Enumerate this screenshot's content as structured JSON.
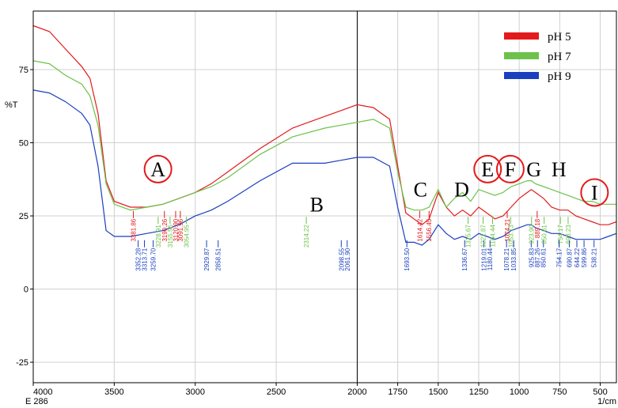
{
  "chart_data": {
    "type": "line",
    "ylabel": "%T",
    "xunit_label": "1/cm",
    "corner_label": "E 286",
    "xlim": [
      4000,
      400
    ],
    "ylim": [
      -32,
      95
    ],
    "xticks": [
      4000,
      3500,
      3000,
      2500,
      2000,
      1750,
      1500,
      1250,
      1000,
      750,
      500
    ],
    "yticks": [
      75,
      50,
      25,
      0,
      -25
    ],
    "grid": true,
    "legend_position": "top-right",
    "series": [
      {
        "name": "pH 5",
        "color": "#e31a1c",
        "x": [
          4000,
          3900,
          3800,
          3700,
          3650,
          3600,
          3550,
          3500,
          3400,
          3300,
          3200,
          3100,
          3000,
          2900,
          2800,
          2600,
          2400,
          2200,
          2100,
          2000,
          1900,
          1800,
          1750,
          1700,
          1650,
          1600,
          1556,
          1500,
          1450,
          1400,
          1350,
          1300,
          1250,
          1200,
          1150,
          1100,
          1050,
          1000,
          950,
          925,
          900,
          850,
          800,
          750,
          700,
          650,
          600,
          550,
          500,
          450,
          400
        ],
        "y": [
          90,
          88,
          82,
          76,
          72,
          60,
          37,
          30,
          28,
          28,
          29,
          31,
          33,
          36,
          40,
          48,
          55,
          59,
          61,
          63,
          62,
          58,
          42,
          26,
          24,
          22,
          24,
          33,
          28,
          25,
          27,
          25,
          28,
          26,
          24,
          25,
          28,
          31,
          33,
          34,
          33,
          31,
          28,
          27,
          27,
          25,
          24,
          23,
          22,
          22,
          23
        ]
      },
      {
        "name": "pH 7",
        "color": "#6cc24a",
        "x": [
          4000,
          3900,
          3800,
          3700,
          3650,
          3600,
          3550,
          3500,
          3400,
          3300,
          3200,
          3100,
          3000,
          2900,
          2800,
          2600,
          2400,
          2200,
          2100,
          2000,
          1900,
          1800,
          1750,
          1700,
          1650,
          1600,
          1556,
          1500,
          1450,
          1400,
          1350,
          1300,
          1250,
          1200,
          1150,
          1100,
          1050,
          1000,
          950,
          925,
          900,
          850,
          800,
          750,
          700,
          650,
          600,
          550,
          500,
          450,
          400
        ],
        "y": [
          78,
          77,
          73,
          70,
          66,
          56,
          36,
          29,
          27,
          28,
          29,
          31,
          33,
          35,
          38,
          46,
          52,
          55,
          56,
          57,
          58,
          55,
          40,
          28,
          27,
          27,
          28,
          34,
          28,
          31,
          33,
          30,
          34,
          33,
          32,
          33,
          35,
          36,
          37,
          37,
          36,
          35,
          34,
          33,
          32,
          31,
          30,
          30,
          29,
          29,
          29
        ]
      },
      {
        "name": "pH 9",
        "color": "#1a3fbf",
        "x": [
          4000,
          3900,
          3800,
          3700,
          3650,
          3600,
          3550,
          3500,
          3400,
          3300,
          3200,
          3100,
          3000,
          2900,
          2800,
          2600,
          2400,
          2200,
          2100,
          2000,
          1900,
          1800,
          1750,
          1700,
          1650,
          1600,
          1556,
          1500,
          1450,
          1400,
          1350,
          1300,
          1250,
          1200,
          1150,
          1100,
          1050,
          1000,
          950,
          925,
          900,
          850,
          800,
          750,
          700,
          650,
          600,
          550,
          500,
          450,
          400
        ],
        "y": [
          68,
          67,
          64,
          60,
          56,
          42,
          20,
          18,
          18,
          19,
          20,
          22,
          25,
          27,
          30,
          37,
          43,
          43,
          44,
          45,
          45,
          42,
          28,
          16,
          16,
          15,
          17,
          22,
          19,
          17,
          18,
          17,
          19,
          18,
          17,
          18,
          20,
          21,
          22,
          22,
          21,
          20,
          19,
          19,
          18,
          17,
          17,
          17,
          17,
          18,
          19
        ]
      }
    ],
    "peak_labels": [
      {
        "text": "3381.86",
        "x": 3381.86,
        "color": "#e31a1c"
      },
      {
        "text": "3352.28",
        "x": 3352.28,
        "color": "#1a3fbf"
      },
      {
        "text": "3313.71",
        "x": 3313.71,
        "color": "#1a3fbf"
      },
      {
        "text": "3259.70",
        "x": 3259.7,
        "color": "#1a3fbf"
      },
      {
        "text": "3228.91",
        "x": 3228.91,
        "color": "#6cc24a"
      },
      {
        "text": "3190.26",
        "x": 3190.26,
        "color": "#e31a1c"
      },
      {
        "text": "3155.56",
        "x": 3155.56,
        "color": "#6cc24a"
      },
      {
        "text": "3120.90",
        "x": 3120.9,
        "color": "#e31a1c"
      },
      {
        "text": "3091.96",
        "x": 3091.96,
        "color": "#e31a1c"
      },
      {
        "text": "3054.95",
        "x": 3054.95,
        "color": "#6cc24a"
      },
      {
        "text": "2929.87",
        "x": 2929.87,
        "color": "#1a3fbf"
      },
      {
        "text": "2858.51",
        "x": 2858.51,
        "color": "#1a3fbf"
      },
      {
        "text": "2314.22",
        "x": 2314.22,
        "color": "#6cc24a"
      },
      {
        "text": "2098.55",
        "x": 2098.55,
        "color": "#1a3fbf"
      },
      {
        "text": "2061.90",
        "x": 2061.9,
        "color": "#1a3fbf"
      },
      {
        "text": "1693.50",
        "x": 1693.5,
        "color": "#1a3fbf"
      },
      {
        "text": "1614.42",
        "x": 1614.42,
        "color": "#e31a1c"
      },
      {
        "text": "1556.45",
        "x": 1556.45,
        "color": "#e31a1c"
      },
      {
        "text": "1336.67",
        "x": 1336.67,
        "color": "#1a3fbf"
      },
      {
        "text": "1315.67",
        "x": 1315.67,
        "color": "#6cc24a"
      },
      {
        "text": "1219.01",
        "x": 1219.01,
        "color": "#1a3fbf"
      },
      {
        "text": "1222.87",
        "x": 1222.87,
        "color": "#6cc24a"
      },
      {
        "text": "1180.44",
        "x": 1180.44,
        "color": "#1a3fbf"
      },
      {
        "text": "1164.44",
        "x": 1164.44,
        "color": "#6cc24a"
      },
      {
        "text": "1078.21",
        "x": 1078.21,
        "color": "#1a3fbf"
      },
      {
        "text": "1074.21",
        "x": 1074.21,
        "color": "#e31a1c"
      },
      {
        "text": "1033.85",
        "x": 1033.85,
        "color": "#1a3fbf"
      },
      {
        "text": "1053.13",
        "x": 1053.13,
        "color": "#6cc24a"
      },
      {
        "text": "925.83",
        "x": 925.83,
        "color": "#1a3fbf"
      },
      {
        "text": "923.90",
        "x": 923.9,
        "color": "#6cc24a"
      },
      {
        "text": "887.26",
        "x": 887.26,
        "color": "#1a3fbf"
      },
      {
        "text": "889.18",
        "x": 889.18,
        "color": "#e31a1c"
      },
      {
        "text": "850.61",
        "x": 850.61,
        "color": "#1a3fbf"
      },
      {
        "text": "850.61",
        "x": 846.0,
        "color": "#6cc24a"
      },
      {
        "text": "754.17",
        "x": 754.17,
        "color": "#1a3fbf"
      },
      {
        "text": "754.17",
        "x": 746.0,
        "color": "#6cc24a"
      },
      {
        "text": "690.87",
        "x": 690.87,
        "color": "#1a3fbf"
      },
      {
        "text": "698.23",
        "x": 698.23,
        "color": "#6cc24a"
      },
      {
        "text": "644.22",
        "x": 644.22,
        "color": "#1a3fbf"
      },
      {
        "text": "599.86",
        "x": 599.86,
        "color": "#1a3fbf"
      },
      {
        "text": "538.21",
        "x": 538.21,
        "color": "#1a3fbf"
      }
    ],
    "region_labels": [
      {
        "text": "A",
        "x": 3230,
        "y": 41,
        "circled": true
      },
      {
        "text": "B",
        "x": 2250,
        "y": 29,
        "circled": false
      },
      {
        "text": "C",
        "x": 1610,
        "y": 34,
        "circled": false
      },
      {
        "text": "D",
        "x": 1355,
        "y": 34,
        "circled": false
      },
      {
        "text": "E",
        "x": 1195,
        "y": 41,
        "circled": true
      },
      {
        "text": "F",
        "x": 1055,
        "y": 41,
        "circled": true
      },
      {
        "text": "G",
        "x": 910,
        "y": 41,
        "circled": false
      },
      {
        "text": "H",
        "x": 755,
        "y": 41,
        "circled": false
      },
      {
        "text": "I",
        "x": 535,
        "y": 33,
        "circled": true
      }
    ]
  }
}
